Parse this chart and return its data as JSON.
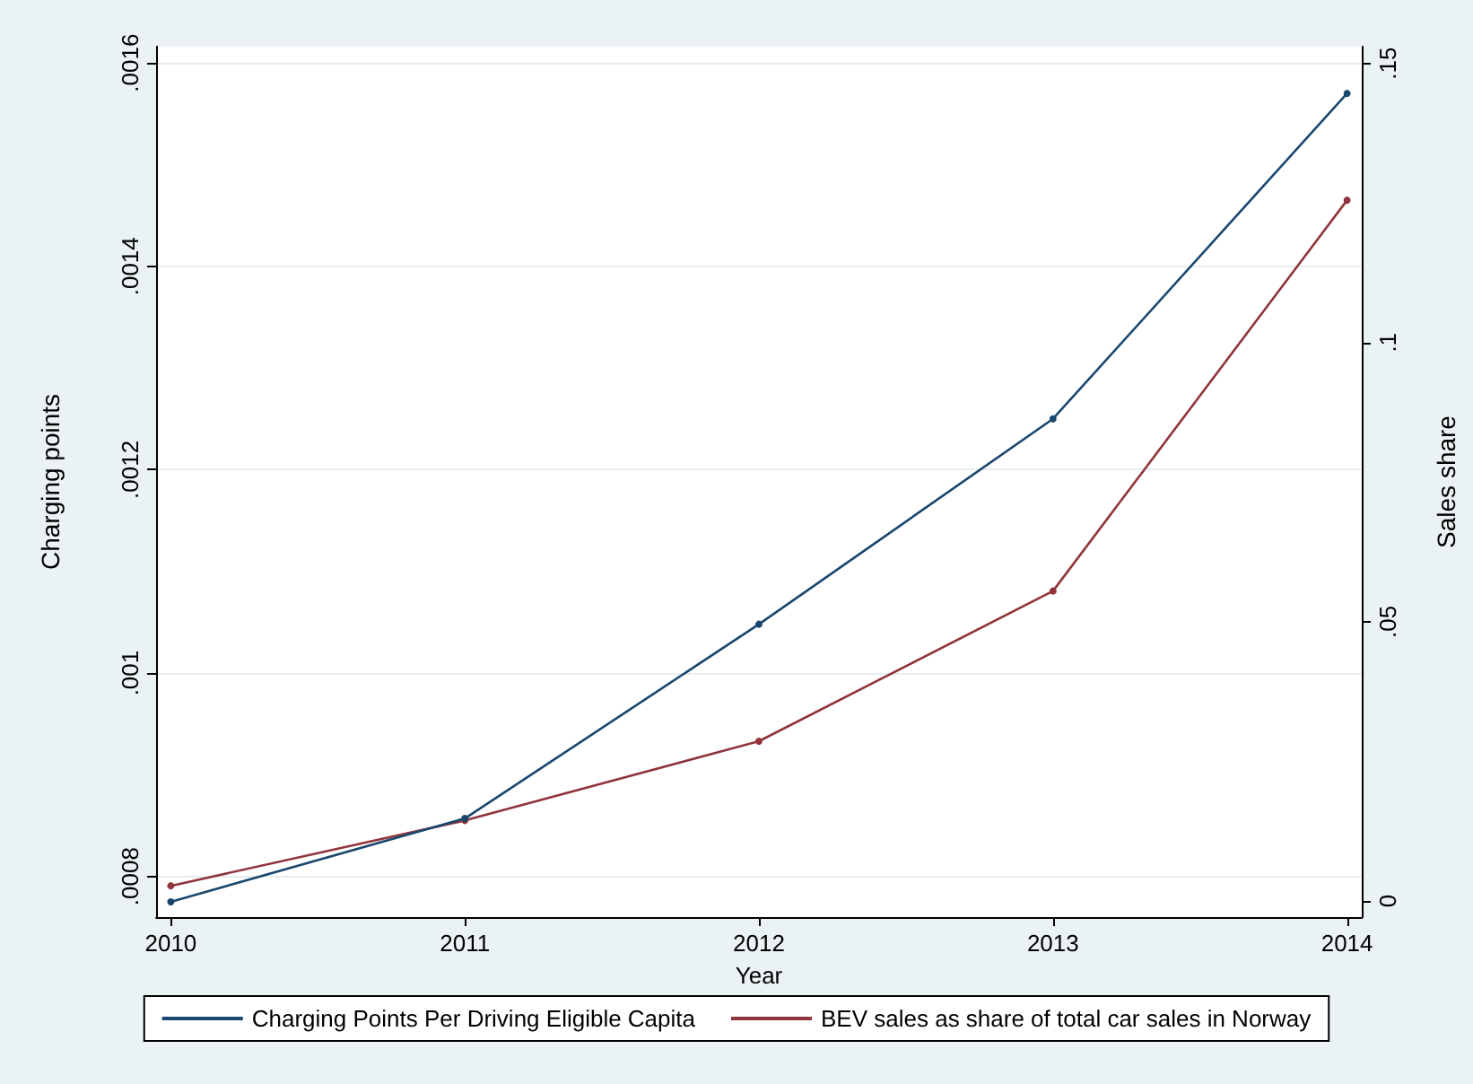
{
  "chart_data": {
    "type": "line",
    "xlabel": "Year",
    "ylabel": "Charging points",
    "y2label": "Sales share",
    "x": [
      2010,
      2011,
      2012,
      2013,
      2014
    ],
    "series": [
      {
        "name": "Charging Points Per Driving Eligible Capita",
        "color": "#1a476f",
        "values": [
          0.000775,
          0.000857,
          0.001048,
          0.00125,
          0.00157
        ]
      },
      {
        "name": "BEV sales as share of total car sales in Norway",
        "color": "#90353b",
        "axis": "y2",
        "values": [
          0.0027,
          0.0144,
          0.0286,
          0.0555,
          0.1255
        ]
      }
    ],
    "xlim": [
      2009.95,
      2014.05
    ],
    "xticks": [
      2010,
      2011,
      2012,
      2013,
      2014
    ],
    "ylim": [
      0.00076,
      0.001616
    ],
    "yticks": [
      {
        "value": 0.0008,
        "label": ".0008"
      },
      {
        "value": 0.001,
        "label": ".001"
      },
      {
        "value": 0.0012,
        "label": ".0012"
      },
      {
        "value": 0.0014,
        "label": ".0014"
      },
      {
        "value": 0.0016,
        "label": ".0016"
      }
    ],
    "y2lim": [
      -0.0029,
      0.153
    ],
    "y2ticks": [
      0,
      {
        "value": 0.05,
        "label": ".05"
      },
      {
        "value": 0.1,
        "label": ".1"
      },
      {
        "value": 0.15,
        "label": ".15"
      }
    ],
    "grid": "y",
    "legend": "bottom",
    "marker": "circle",
    "line_style": "solid"
  }
}
